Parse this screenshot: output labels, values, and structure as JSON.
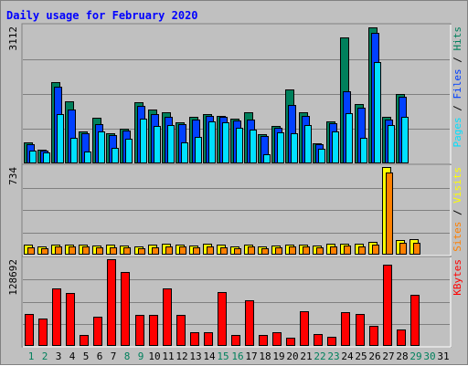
{
  "chart_data": {
    "type": "bar",
    "title": "Daily usage for February 2020",
    "days": [
      "1",
      "2",
      "3",
      "4",
      "5",
      "6",
      "7",
      "8",
      "9",
      "10",
      "11",
      "12",
      "13",
      "14",
      "15",
      "16",
      "17",
      "18",
      "19",
      "20",
      "21",
      "22",
      "23",
      "24",
      "25",
      "26",
      "27",
      "28",
      "29",
      "30",
      "31"
    ],
    "weekend_days": [
      "1",
      "2",
      "8",
      "9",
      "15",
      "16",
      "22",
      "23",
      "29",
      "30"
    ],
    "panels": [
      {
        "id": "top",
        "max_label": "3112",
        "ylim": [
          0,
          3112
        ],
        "legend": [
          "Pages",
          "Files",
          "Hits"
        ],
        "series": [
          {
            "name": "Hits",
            "color": "#00805c",
            "values": [
              480,
              320,
              1840,
              1420,
              720,
              1040,
              680,
              780,
              1380,
              1220,
              1160,
              940,
              1060,
              1120,
              1080,
              1020,
              1160,
              660,
              860,
              1680,
              1160,
              460,
              960,
              2860,
              1340,
              3100,
              1060,
              1580,
              0,
              0,
              0
            ]
          },
          {
            "name": "Files",
            "color": "#0040ff",
            "values": [
              440,
              300,
              1740,
              1220,
              680,
              900,
              650,
              740,
              1300,
              1120,
              1060,
              900,
              1000,
              1070,
              1050,
              980,
              1000,
              620,
              800,
              1320,
              1080,
              440,
              920,
              1640,
              1260,
              2960,
              1000,
              1520,
              0,
              0,
              0
            ]
          },
          {
            "name": "Pages",
            "color": "#00e0ff",
            "values": [
              300,
              240,
              1120,
              580,
              280,
              720,
              360,
              560,
              1020,
              860,
              880,
              480,
              600,
              960,
              940,
              800,
              760,
              200,
              700,
              680,
              880,
              340,
              720,
              1140,
              580,
              2300,
              880,
              1060,
              0,
              0,
              0
            ]
          }
        ]
      },
      {
        "id": "middle",
        "max_label": "734",
        "ylim": [
          0,
          734
        ],
        "legend": [
          "Sites",
          "Visits"
        ],
        "series": [
          {
            "name": "Visits",
            "color": "#ffff00",
            "values": [
              82,
              72,
              85,
              84,
              85,
              80,
              82,
              80,
              72,
              82,
              90,
              85,
              80,
              88,
              82,
              72,
              84,
              68,
              80,
              86,
              84,
              78,
              90,
              92,
              90,
              110,
              734,
              122,
              132,
              0,
              0
            ]
          },
          {
            "name": "Sites",
            "color": "#ff8000",
            "values": [
              62,
              52,
              68,
              66,
              66,
              62,
              64,
              62,
              56,
              64,
              70,
              66,
              62,
              70,
              64,
              56,
              66,
              54,
              62,
              70,
              66,
              60,
              72,
              76,
              72,
              86,
              690,
              96,
              96,
              0,
              0
            ]
          }
        ]
      },
      {
        "id": "bottom",
        "max_label": "128692",
        "ylim": [
          0,
          128692
        ],
        "legend": [
          "KBytes"
        ],
        "series": [
          {
            "name": "KBytes",
            "color": "#ff0000",
            "values": [
              48000,
              40000,
              86000,
              78000,
              16000,
              44000,
              131000,
              110000,
              46000,
              46000,
              86000,
              46000,
              20000,
              20000,
              80000,
              16000,
              68000,
              16000,
              20000,
              12000,
              52000,
              18000,
              14000,
              50000,
              48000,
              30000,
              120000,
              24000,
              76000,
              0,
              0
            ]
          }
        ]
      }
    ]
  },
  "colors": {
    "title": "#0000ff",
    "weekday_label": "#000000",
    "weekend_label": "#00805c",
    "pages": "#00e0ff",
    "files": "#0040ff",
    "hits": "#00805c",
    "sites": "#ff8000",
    "visits": "#ffff00",
    "kbytes": "#ff0000"
  }
}
